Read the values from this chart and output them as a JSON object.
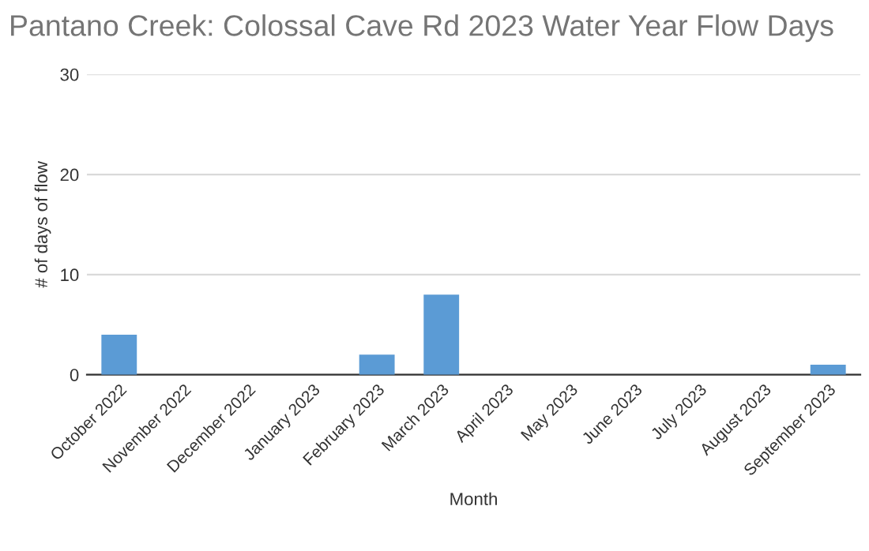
{
  "chart_data": {
    "type": "bar",
    "title": "Pantano Creek: Colossal Cave Rd 2023 Water Year Flow Days",
    "xlabel": "Month",
    "ylabel": "# of days of flow",
    "categories": [
      "October 2022",
      "November 2022",
      "December 2022",
      "January 2023",
      "February 2023",
      "March 2023",
      "April 2023",
      "May 2023",
      "June 2023",
      "July 2023",
      "August 2023",
      "September 2023"
    ],
    "values": [
      4,
      0,
      0,
      0,
      2,
      8,
      0,
      0,
      0,
      0,
      0,
      1
    ],
    "color": "#5b9bd5",
    "ylim": [
      0,
      30
    ],
    "yticks": [
      0,
      10,
      20,
      30
    ],
    "grid": "y",
    "legend": false
  }
}
